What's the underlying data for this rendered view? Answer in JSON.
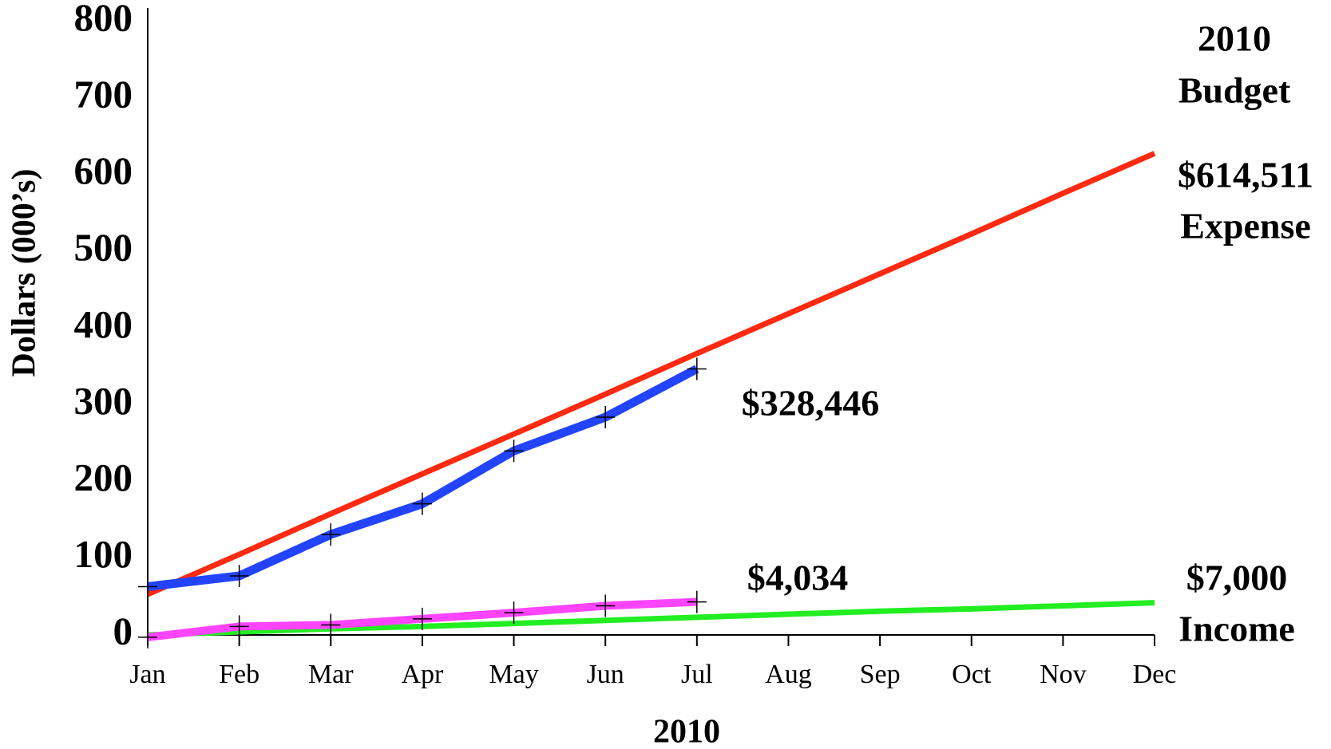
{
  "chart_data": {
    "type": "line",
    "x_label": "2010",
    "y_label": "Dollars (000’s)",
    "categories": [
      "Jan",
      "Feb",
      "Mar",
      "Apr",
      "May",
      "Jun",
      "Jul",
      "Aug",
      "Sep",
      "Oct",
      "Nov",
      "Dec"
    ],
    "series": [
      {
        "color": "#ff2a10",
        "values": [
          53,
          105,
          158,
          210,
          262,
          314,
          367,
          419,
          471,
          523,
          576,
          628
        ]
      },
      {
        "color": "#22ee22",
        "values": [
          0,
          4,
          8,
          11,
          15,
          19,
          23,
          27,
          31,
          34,
          38,
          42
        ]
      },
      {
        "color": "#2244ff",
        "values": [
          63,
          77,
          131,
          171,
          240,
          284,
          347,
          null,
          null,
          null,
          null,
          null
        ]
      },
      {
        "color": "#ff44ff",
        "values": [
          -3,
          11,
          13,
          21,
          29,
          38,
          43,
          null,
          null,
          null,
          null,
          null
        ]
      }
    ],
    "ylim": [
      0,
      800
    ],
    "yticks": [
      0,
      100,
      200,
      300,
      400,
      500,
      600,
      700,
      800
    ],
    "annotations": [
      "2010",
      "Budget",
      "$614,511",
      "Expense",
      "$328,446",
      "$4,034",
      "$7,000",
      "Income"
    ]
  }
}
